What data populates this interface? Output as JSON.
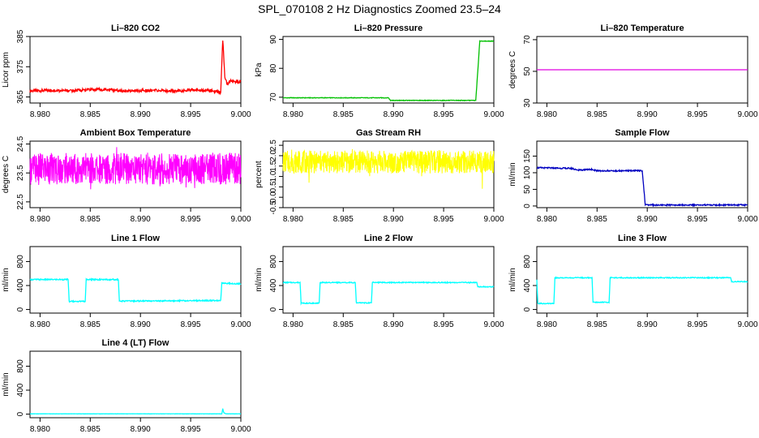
{
  "page_title": "SPL_070108  2 Hz Diagnostics Zoomed 23.5–24",
  "chart_data": [
    {
      "type": "line",
      "title": "Li–820 CO2",
      "xlabel": "",
      "ylabel": "Licor ppm",
      "color": "#ff0000",
      "xlim": [
        8.979,
        9.0
      ],
      "ylim": [
        363,
        385
      ],
      "xticks": [
        "8.980",
        "8.985",
        "8.990",
        "8.995",
        "9.000"
      ],
      "yticks": [
        "365",
        "375",
        "385"
      ],
      "series": [
        {
          "x": [
            8.979,
            8.981,
            8.983,
            8.985,
            8.987,
            8.989,
            8.991,
            8.993,
            8.995,
            8.997,
            8.998,
            8.9982,
            8.9984,
            8.9986,
            8.999,
            8.9995,
            9.0
          ],
          "y": [
            367,
            367.2,
            367,
            367.5,
            367.3,
            367,
            367.2,
            367,
            367.3,
            367.1,
            366.5,
            384,
            372,
            369.5,
            370.2,
            370,
            370.2
          ]
        }
      ]
    },
    {
      "type": "line",
      "title": "Li–820 Pressure",
      "xlabel": "",
      "ylabel": "kPa",
      "color": "#00c000",
      "xlim": [
        8.979,
        9.0
      ],
      "ylim": [
        68,
        91
      ],
      "xticks": [
        "8.980",
        "8.985",
        "8.990",
        "8.995",
        "9.000"
      ],
      "yticks": [
        "70",
        "80",
        "90"
      ],
      "series": [
        {
          "x": [
            8.979,
            8.9895,
            8.9897,
            8.9982,
            8.9985,
            8.9986,
            9.0
          ],
          "y": [
            69.8,
            69.8,
            68.9,
            68.9,
            84,
            89.4,
            89.4
          ]
        }
      ]
    },
    {
      "type": "line",
      "title": "Li–820 Temperature",
      "xlabel": "",
      "ylabel": "degrees C",
      "color": "#e000e0",
      "xlim": [
        8.979,
        9.0
      ],
      "ylim": [
        30,
        72
      ],
      "xticks": [
        "8.980",
        "8.985",
        "8.990",
        "8.995",
        "9.000"
      ],
      "yticks": [
        "30",
        "50",
        "70"
      ],
      "series": [
        {
          "x": [
            8.979,
            9.0
          ],
          "y": [
            51,
            51
          ]
        }
      ]
    },
    {
      "type": "line",
      "title": "Ambient Box Temperature",
      "xlabel": "",
      "ylabel": "degrees C",
      "color": "#ff00ff",
      "xlim": [
        8.979,
        9.0
      ],
      "ylim": [
        22.3,
        24.6
      ],
      "xticks": [
        "8.980",
        "8.985",
        "8.990",
        "8.995",
        "9.000"
      ],
      "yticks": [
        "22.5",
        "23.5",
        "24.5"
      ],
      "series": [
        {
          "x": [
            8.979,
            8.9795,
            8.9805,
            8.982,
            8.9835,
            8.985,
            8.986,
            8.9875,
            8.989,
            8.9905,
            8.992,
            8.9935,
            8.995,
            8.9965,
            8.998,
            8.999,
            9.0
          ],
          "y": [
            23.6,
            22.45,
            24.2,
            23.2,
            24.1,
            22.9,
            23.7,
            24.5,
            23.3,
            24.1,
            23.0,
            23.9,
            22.6,
            24.0,
            23.4,
            24.3,
            23.5
          ]
        }
      ]
    },
    {
      "type": "line",
      "title": "Gas Stream RH",
      "xlabel": "",
      "ylabel": "percent",
      "color": "#ffff00",
      "xlim": [
        8.979,
        9.0
      ],
      "ylim": [
        -0.5,
        2.7
      ],
      "xticks": [
        "8.980",
        "8.985",
        "8.990",
        "8.995",
        "9.000"
      ],
      "yticks": [
        "-0.5",
        "0.0",
        "0.5",
        "1.0",
        "1.5",
        "2.0",
        "2.5"
      ],
      "series": [
        {
          "x": [
            8.979,
            8.98,
            8.9815,
            8.983,
            8.9845,
            8.986,
            8.9875,
            8.989,
            8.99,
            8.9915,
            8.993,
            8.9945,
            8.996,
            8.9975,
            8.999,
            9.0
          ],
          "y": [
            1.6,
            2.4,
            0.6,
            2.3,
            1.0,
            2.4,
            0.9,
            2.2,
            1.1,
            2.5,
            0.8,
            2.3,
            1.2,
            2.4,
            0.2,
            1.7
          ]
        }
      ]
    },
    {
      "type": "line",
      "title": "Sample Flow",
      "xlabel": "",
      "ylabel": "ml/min",
      "color": "#0000c0",
      "xlim": [
        8.979,
        9.0
      ],
      "ylim": [
        -5,
        195
      ],
      "xticks": [
        "8.980",
        "8.985",
        "8.990",
        "8.995",
        "9.000"
      ],
      "yticks": [
        "0",
        "50",
        "100",
        "150"
      ],
      "series": [
        {
          "x": [
            8.979,
            8.9825,
            8.983,
            8.9845,
            8.985,
            8.9895,
            8.9898,
            9.0
          ],
          "y": [
            115,
            113,
            108,
            110,
            106,
            106,
            3,
            3
          ]
        }
      ]
    },
    {
      "type": "line",
      "title": "Line 1 Flow",
      "xlabel": "",
      "ylabel": "ml/min",
      "color": "#00ffff",
      "xlim": [
        8.979,
        9.0
      ],
      "ylim": [
        -60,
        1050
      ],
      "xticks": [
        "8.980",
        "8.985",
        "8.990",
        "8.995",
        "9.000"
      ],
      "yticks": [
        "0",
        "400",
        "800"
      ],
      "series": [
        {
          "x": [
            8.979,
            8.9828,
            8.9829,
            8.9845,
            8.9846,
            8.9878,
            8.9879,
            8.998,
            8.9981,
            9.0
          ],
          "y": [
            500,
            500,
            135,
            135,
            500,
            500,
            140,
            150,
            440,
            430
          ]
        }
      ]
    },
    {
      "type": "line",
      "title": "Line 2 Flow",
      "xlabel": "",
      "ylabel": "ml/min",
      "color": "#00ffff",
      "xlim": [
        8.979,
        9.0
      ],
      "ylim": [
        -60,
        1050
      ],
      "xticks": [
        "8.980",
        "8.985",
        "8.990",
        "8.995",
        "9.000"
      ],
      "yticks": [
        "0",
        "400",
        "800"
      ],
      "series": [
        {
          "x": [
            8.979,
            8.9807,
            8.9808,
            8.9826,
            8.9827,
            8.9862,
            8.9863,
            8.9878,
            8.9879,
            8.9983,
            8.9984,
            9.0
          ],
          "y": [
            450,
            450,
            105,
            105,
            450,
            450,
            110,
            110,
            450,
            450,
            380,
            380
          ]
        }
      ]
    },
    {
      "type": "line",
      "title": "Line 3 Flow",
      "xlabel": "",
      "ylabel": "ml/min",
      "color": "#00ffff",
      "xlim": [
        8.979,
        9.0
      ],
      "ylim": [
        -60,
        1050
      ],
      "xticks": [
        "8.980",
        "8.985",
        "8.990",
        "8.995",
        "9.000"
      ],
      "yticks": [
        "0",
        "400",
        "800"
      ],
      "series": [
        {
          "x": [
            8.979,
            8.9791,
            8.9792,
            8.9807,
            8.9808,
            8.9845,
            8.9846,
            8.9862,
            8.9863,
            8.9983,
            8.9984,
            9.0
          ],
          "y": [
            500,
            100,
            100,
            100,
            530,
            530,
            120,
            120,
            530,
            530,
            465,
            465
          ]
        }
      ]
    },
    {
      "type": "line",
      "title": "Line 4 (LT) Flow",
      "xlabel": "",
      "ylabel": "ml/min",
      "color": "#00ffff",
      "xlim": [
        8.979,
        9.0
      ],
      "ylim": [
        -60,
        1050
      ],
      "xticks": [
        "8.980",
        "8.985",
        "8.990",
        "8.995",
        "9.000"
      ],
      "yticks": [
        "0",
        "400",
        "800"
      ],
      "series": [
        {
          "x": [
            8.979,
            8.9981,
            8.9982,
            8.9983,
            8.9985,
            9.0
          ],
          "y": [
            5,
            5,
            90,
            25,
            5,
            5
          ]
        }
      ]
    }
  ]
}
